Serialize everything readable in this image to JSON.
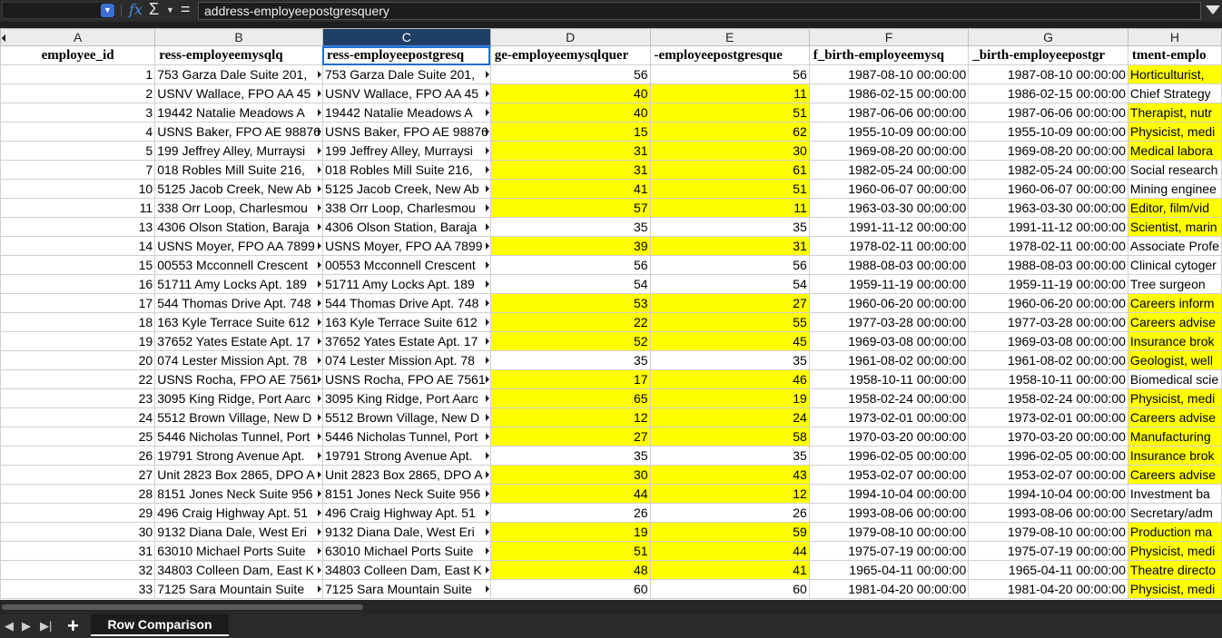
{
  "formula_bar": {
    "name_box_value": "",
    "formula_icon": "fx",
    "sum_icon": "Σ",
    "equals_icon": "=",
    "content": "address-employeepostgresquery"
  },
  "columns": [
    "A",
    "B",
    "C",
    "D",
    "E",
    "F",
    "G",
    "H"
  ],
  "selected_column": "C",
  "header_row": [
    "employee_id",
    "ress-employeemysqlq",
    "ress-employeepostgresq",
    "ge-employeemysqlquer",
    "-employeepostgresque",
    "f_birth-employeemysq",
    "_birth-employeepostgr",
    "tment-emplo"
  ],
  "rows": [
    {
      "id": "1",
      "b": "753 Garza Dale Suite 201,",
      "c": "753 Garza Dale Suite 201,",
      "d": "56",
      "e": "56",
      "f": "1987-08-10 00:00:00",
      "g": "1987-08-10 00:00:00",
      "h": "Horticulturist,",
      "hl_de": false,
      "hl_h": true
    },
    {
      "id": "2",
      "b": "USNV Wallace, FPO AA 45",
      "c": "USNV Wallace, FPO AA 45",
      "d": "40",
      "e": "11",
      "f": "1986-02-15 00:00:00",
      "g": "1986-02-15 00:00:00",
      "h": "Chief Strategy",
      "hl_de": true,
      "hl_h": false
    },
    {
      "id": "3",
      "b": "19442 Natalie Meadows A",
      "c": "19442 Natalie Meadows A",
      "d": "40",
      "e": "51",
      "f": "1987-06-06 00:00:00",
      "g": "1987-06-06 00:00:00",
      "h": "Therapist, nutr",
      "hl_de": true,
      "hl_h": true
    },
    {
      "id": "4",
      "b": "USNS Baker, FPO AE 98876",
      "c": "USNS Baker, FPO AE 98876",
      "d": "15",
      "e": "62",
      "f": "1955-10-09 00:00:00",
      "g": "1955-10-09 00:00:00",
      "h": "Physicist, medi",
      "hl_de": true,
      "hl_h": true
    },
    {
      "id": "5",
      "b": "199 Jeffrey Alley, Murraysi",
      "c": "199 Jeffrey Alley, Murraysi",
      "d": "31",
      "e": "30",
      "f": "1969-08-20 00:00:00",
      "g": "1969-08-20 00:00:00",
      "h": "Medical labora",
      "hl_de": true,
      "hl_h": true
    },
    {
      "id": "7",
      "b": "018 Robles Mill Suite 216,",
      "c": "018 Robles Mill Suite 216,",
      "d": "31",
      "e": "61",
      "f": "1982-05-24 00:00:00",
      "g": "1982-05-24 00:00:00",
      "h": "Social research",
      "hl_de": true,
      "hl_h": false
    },
    {
      "id": "10",
      "b": "5125 Jacob Creek, New Ab",
      "c": "5125 Jacob Creek, New Ab",
      "d": "41",
      "e": "51",
      "f": "1960-06-07 00:00:00",
      "g": "1960-06-07 00:00:00",
      "h": "Mining enginee",
      "hl_de": true,
      "hl_h": false
    },
    {
      "id": "11",
      "b": "338 Orr Loop, Charlesmou",
      "c": "338 Orr Loop, Charlesmou",
      "d": "57",
      "e": "11",
      "f": "1963-03-30 00:00:00",
      "g": "1963-03-30 00:00:00",
      "h": "Editor, film/vid",
      "hl_de": true,
      "hl_h": true
    },
    {
      "id": "13",
      "b": "4306 Olson Station, Baraja",
      "c": "4306 Olson Station, Baraja",
      "d": "35",
      "e": "35",
      "f": "1991-11-12 00:00:00",
      "g": "1991-11-12 00:00:00",
      "h": "Scientist, marin",
      "hl_de": false,
      "hl_h": true
    },
    {
      "id": "14",
      "b": "USNS Moyer, FPO AA 7899",
      "c": "USNS Moyer, FPO AA 7899",
      "d": "39",
      "e": "31",
      "f": "1978-02-11 00:00:00",
      "g": "1978-02-11 00:00:00",
      "h": "Associate Profe",
      "hl_de": true,
      "hl_h": false
    },
    {
      "id": "15",
      "b": "00553 Mcconnell Crescent",
      "c": "00553 Mcconnell Crescent",
      "d": "56",
      "e": "56",
      "f": "1988-08-03 00:00:00",
      "g": "1988-08-03 00:00:00",
      "h": "Clinical cytoger",
      "hl_de": false,
      "hl_h": false
    },
    {
      "id": "16",
      "b": "51711 Amy Locks Apt. 189",
      "c": "51711 Amy Locks Apt. 189",
      "d": "54",
      "e": "54",
      "f": "1959-11-19 00:00:00",
      "g": "1959-11-19 00:00:00",
      "h": "Tree surgeon",
      "hl_de": false,
      "hl_h": false
    },
    {
      "id": "17",
      "b": "544 Thomas Drive Apt. 748",
      "c": "544 Thomas Drive Apt. 748",
      "d": "53",
      "e": "27",
      "f": "1960-06-20 00:00:00",
      "g": "1960-06-20 00:00:00",
      "h": "Careers inform",
      "hl_de": true,
      "hl_h": true
    },
    {
      "id": "18",
      "b": "163 Kyle Terrace Suite 612",
      "c": "163 Kyle Terrace Suite 612",
      "d": "22",
      "e": "55",
      "f": "1977-03-28 00:00:00",
      "g": "1977-03-28 00:00:00",
      "h": "Careers advise",
      "hl_de": true,
      "hl_h": true
    },
    {
      "id": "19",
      "b": "37652 Yates Estate Apt. 17",
      "c": "37652 Yates Estate Apt. 17",
      "d": "52",
      "e": "45",
      "f": "1969-03-08 00:00:00",
      "g": "1969-03-08 00:00:00",
      "h": "Insurance brok",
      "hl_de": true,
      "hl_h": true
    },
    {
      "id": "20",
      "b": "074 Lester Mission Apt. 78",
      "c": "074 Lester Mission Apt. 78",
      "d": "35",
      "e": "35",
      "f": "1961-08-02 00:00:00",
      "g": "1961-08-02 00:00:00",
      "h": "Geologist, well",
      "hl_de": false,
      "hl_h": true
    },
    {
      "id": "22",
      "b": "USNS Rocha, FPO AE 7561",
      "c": "USNS Rocha, FPO AE 7561",
      "d": "17",
      "e": "46",
      "f": "1958-10-11 00:00:00",
      "g": "1958-10-11 00:00:00",
      "h": "Biomedical scie",
      "hl_de": true,
      "hl_h": false
    },
    {
      "id": "23",
      "b": "3095 King Ridge, Port Aarc",
      "c": "3095 King Ridge, Port Aarc",
      "d": "65",
      "e": "19",
      "f": "1958-02-24 00:00:00",
      "g": "1958-02-24 00:00:00",
      "h": "Physicist, medi",
      "hl_de": true,
      "hl_h": true
    },
    {
      "id": "24",
      "b": "5512 Brown Village, New D",
      "c": "5512 Brown Village, New D",
      "d": "12",
      "e": "24",
      "f": "1973-02-01 00:00:00",
      "g": "1973-02-01 00:00:00",
      "h": "Careers advise",
      "hl_de": true,
      "hl_h": true
    },
    {
      "id": "25",
      "b": "5446 Nicholas Tunnel, Port",
      "c": "5446 Nicholas Tunnel, Port",
      "d": "27",
      "e": "58",
      "f": "1970-03-20 00:00:00",
      "g": "1970-03-20 00:00:00",
      "h": "Manufacturing",
      "hl_de": true,
      "hl_h": true
    },
    {
      "id": "26",
      "b": "19791 Strong Avenue Apt.",
      "c": "19791 Strong Avenue Apt.",
      "d": "35",
      "e": "35",
      "f": "1996-02-05 00:00:00",
      "g": "1996-02-05 00:00:00",
      "h": "Insurance brok",
      "hl_de": false,
      "hl_h": true
    },
    {
      "id": "27",
      "b": "Unit 2823 Box 2865, DPO A",
      "c": "Unit 2823 Box 2865, DPO A",
      "d": "30",
      "e": "43",
      "f": "1953-02-07 00:00:00",
      "g": "1953-02-07 00:00:00",
      "h": "Careers advise",
      "hl_de": true,
      "hl_h": true
    },
    {
      "id": "28",
      "b": "8151 Jones Neck Suite 956",
      "c": "8151 Jones Neck Suite 956",
      "d": "44",
      "e": "12",
      "f": "1994-10-04 00:00:00",
      "g": "1994-10-04 00:00:00",
      "h": "Investment ba",
      "hl_de": true,
      "hl_h": false
    },
    {
      "id": "29",
      "b": "496 Craig Highway Apt. 51",
      "c": "496 Craig Highway Apt. 51",
      "d": "26",
      "e": "26",
      "f": "1993-08-06 00:00:00",
      "g": "1993-08-06 00:00:00",
      "h": "Secretary/adm",
      "hl_de": false,
      "hl_h": false
    },
    {
      "id": "30",
      "b": "9132 Diana Dale, West Eri",
      "c": "9132 Diana Dale, West Eri",
      "d": "19",
      "e": "59",
      "f": "1979-08-10 00:00:00",
      "g": "1979-08-10 00:00:00",
      "h": "Production ma",
      "hl_de": true,
      "hl_h": true
    },
    {
      "id": "31",
      "b": "63010 Michael Ports Suite",
      "c": "63010 Michael Ports Suite",
      "d": "51",
      "e": "44",
      "f": "1975-07-19 00:00:00",
      "g": "1975-07-19 00:00:00",
      "h": "Physicist, medi",
      "hl_de": true,
      "hl_h": true
    },
    {
      "id": "32",
      "b": "34803 Colleen Dam, East K",
      "c": "34803 Colleen Dam, East K",
      "d": "48",
      "e": "41",
      "f": "1965-04-11 00:00:00",
      "g": "1965-04-11 00:00:00",
      "h": "Theatre directo",
      "hl_de": true,
      "hl_h": true
    },
    {
      "id": "33",
      "b": "7125 Sara Mountain Suite",
      "c": "7125 Sara Mountain Suite",
      "d": "60",
      "e": "60",
      "f": "1981-04-20 00:00:00",
      "g": "1981-04-20 00:00:00",
      "h": "Physicist, medi",
      "hl_de": false,
      "hl_h": true
    }
  ],
  "sheet_tabs": [
    {
      "label": "Row Comparison",
      "active": true
    }
  ],
  "colors": {
    "highlight": "#ffff00",
    "selected_header": "#1f3f67"
  }
}
